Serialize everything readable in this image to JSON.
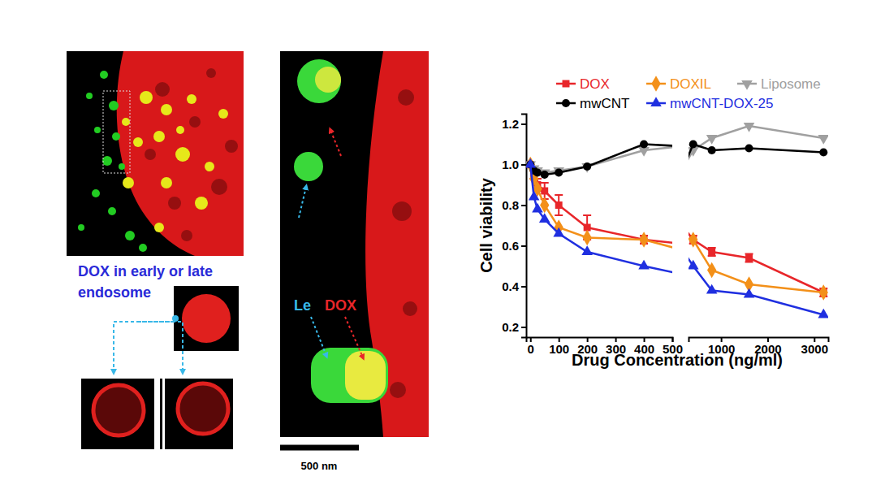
{
  "chart_data": {
    "type": "line",
    "x_label": "Drug Concentration (ng/ml)",
    "y_label": "Cell viability",
    "x": [
      0,
      12.5,
      25,
      50,
      100,
      200,
      400,
      800,
      1600,
      3200
    ],
    "xlim": [
      [
        -15,
        500
      ],
      [
        300,
        3300
      ]
    ],
    "xticks": [
      [
        0,
        100,
        200,
        300,
        400,
        500
      ],
      [
        1000,
        2000,
        3000
      ]
    ],
    "ylim": [
      0.15,
      1.25
    ],
    "yticks": [
      0.2,
      0.4,
      0.6,
      0.8,
      {
        "value": 1,
        "label": "1.0"
      },
      1.2
    ],
    "legend": "top",
    "grid": false,
    "series": [
      {
        "name": "DOX",
        "color": "#e8262a",
        "marker": "square",
        "values": [
          1.0,
          0.95,
          0.9,
          0.87,
          0.8,
          0.69,
          0.63,
          0.57,
          0.54,
          0.37
        ],
        "errors": [
          0,
          0.02,
          0.03,
          0.04,
          0.05,
          0.06,
          0.02,
          0.02,
          0.02,
          0.02
        ]
      },
      {
        "name": "DOXIL",
        "color": "#f39019",
        "marker": "diamond",
        "values": [
          1.0,
          0.93,
          0.88,
          0.8,
          0.69,
          0.64,
          0.63,
          0.48,
          0.41,
          0.37
        ]
      },
      {
        "name": "Liposome",
        "color": "#a0a0a0",
        "marker": "triangle-down",
        "values": [
          1.0,
          0.98,
          0.97,
          0.96,
          0.97,
          0.99,
          1.07,
          1.13,
          1.19,
          1.13
        ]
      },
      {
        "name": "mwCNT",
        "color": "#000000",
        "marker": "circle",
        "values": [
          1.0,
          0.97,
          0.96,
          0.95,
          0.96,
          0.99,
          1.1,
          1.07,
          1.08,
          1.06
        ]
      },
      {
        "name": "mwCNT-DOX-25",
        "color": "#1f2fe0",
        "marker": "triangle-up",
        "values": [
          1.0,
          0.84,
          0.78,
          0.73,
          0.66,
          0.57,
          0.5,
          0.38,
          0.36,
          0.26
        ]
      }
    ]
  },
  "figure": {
    "caption": [
      "DOX in early or late",
      "endosome"
    ],
    "le_label": "Le",
    "dox_label": "DOX",
    "scale_bar": "500 nm"
  }
}
